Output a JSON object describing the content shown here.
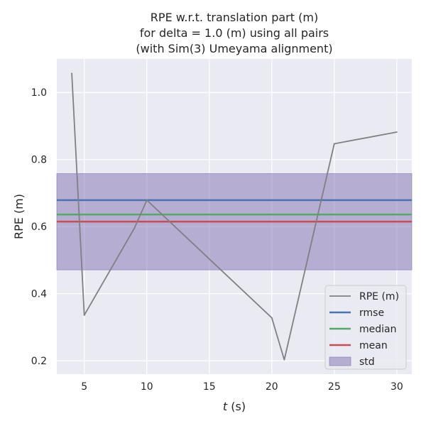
{
  "chart_data": {
    "type": "line",
    "title": [
      "RPE w.r.t. translation part (m)",
      "for delta = 1.0 (m) using all pairs",
      "(with Sim(3) Umeyama alignment)"
    ],
    "xlabel": "t (s)",
    "ylabel": "RPE (m)",
    "xlim": [
      2.8,
      31.2
    ],
    "ylim": [
      0.16,
      1.1
    ],
    "xticks": [
      5,
      10,
      15,
      20,
      25,
      30
    ],
    "yticks": [
      0.2,
      0.4,
      0.6,
      0.8,
      1.0
    ],
    "xtick_labels": [
      "5",
      "10",
      "15",
      "20",
      "25",
      "30"
    ],
    "ytick_labels": [
      "0.2",
      "0.4",
      "0.6",
      "0.8",
      "1.0"
    ],
    "grid": true,
    "legend_position": "bottom-right",
    "series": [
      {
        "name": "RPE (m)",
        "color": "#808080",
        "x": [
          4,
          5,
          9,
          10,
          20,
          21,
          25,
          30
        ],
        "y": [
          1.057,
          0.336,
          0.595,
          0.679,
          0.328,
          0.203,
          0.847,
          0.882
        ]
      }
    ],
    "stats": [
      {
        "name": "rmse",
        "value": 0.679,
        "color": "#4c72b0"
      },
      {
        "name": "median",
        "value": 0.636,
        "color": "#55a868"
      },
      {
        "name": "mean",
        "value": 0.615,
        "color": "#c44e52"
      }
    ],
    "std_band": {
      "name": "std",
      "low": 0.471,
      "high": 0.758,
      "color": "#8172b2"
    },
    "background": "#eaeaf2",
    "grid_color": "#ffffff"
  }
}
